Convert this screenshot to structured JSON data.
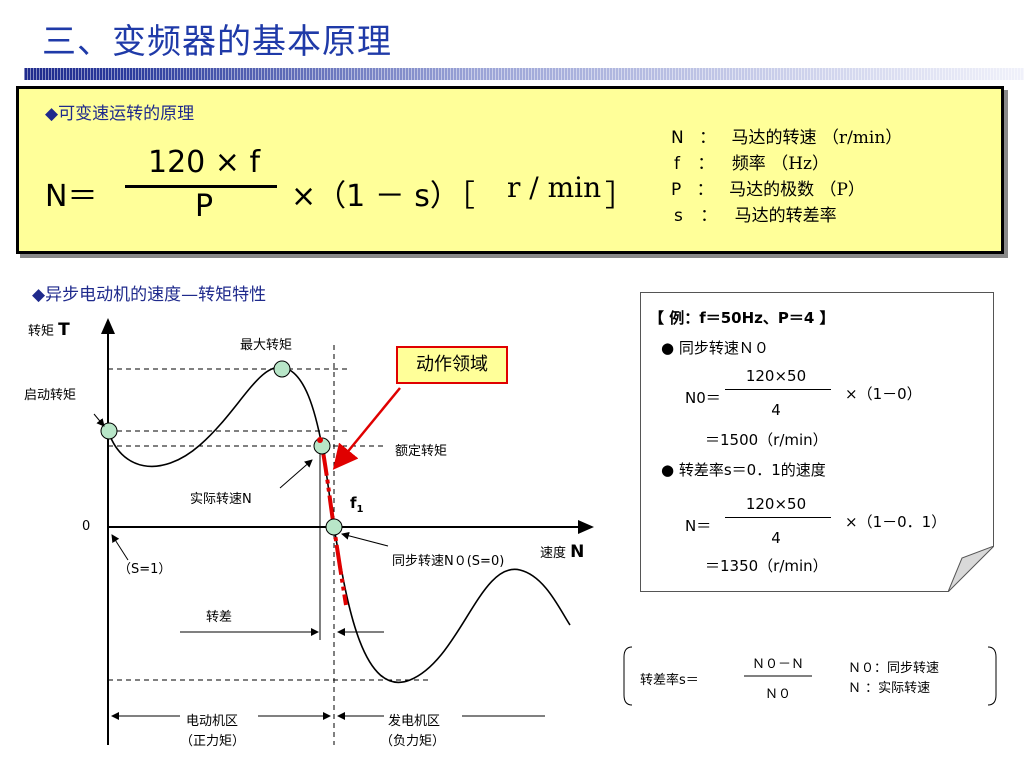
{
  "title": "三、变频器的基本原理",
  "formula_section": {
    "heading": "◆可变速运转的原理",
    "lhs": "N＝",
    "numerator": "120 × f",
    "denominator": "P",
    "rhs": "×（1 － s）［",
    "unit": "r / min",
    "close": "］",
    "legend": [
      {
        "sym": "N",
        "desc": "马达的转速",
        "unit": "（r/min）"
      },
      {
        "sym": "f",
        "desc": "频率",
        "unit": "（Hz）"
      },
      {
        "sym": "P",
        "desc": "马达的极数",
        "unit": "（P）"
      },
      {
        "sym": "s",
        "desc": "马达的转差率",
        "unit": ""
      }
    ],
    "colon": "："
  },
  "chart_section": {
    "heading": "◆异步电动机的速度—转矩特性",
    "y_axis_label": "转矩",
    "y_axis_symbol": "T",
    "x_axis_label": "速度",
    "x_axis_symbol": "N",
    "origin": "0",
    "labels": {
      "max_torque": "最大转矩",
      "start_torque": "启动转矩",
      "rated_torque": "额定转矩",
      "actual_speed": "实际转速N",
      "f1": "f",
      "f1_sub": "1",
      "sync_speed": "同步转速N０(S=0)",
      "s1": "（S=1）",
      "slip": "转差",
      "motor_zone": "电动机区",
      "motor_zone_sub": "（正力矩）",
      "gen_zone": "发电机区",
      "gen_zone_sub": "（负力矩）",
      "operating_region": "动作领域"
    },
    "colors": {
      "curve": "#000000",
      "operating": "#e00000",
      "marker": "#b8e6c8"
    }
  },
  "example": {
    "title": "【 例：f＝50Hz、P＝4 】",
    "item1": "● 同步转速Ｎ０",
    "n0_lhs": "N0＝",
    "n0_num": "120×50",
    "n0_den": "4",
    "n0_factor": "×（1－0）",
    "n0_result": "＝1500（r/min）",
    "item2": "● 转差率s＝0．1的速度",
    "n_lhs": "N＝",
    "n_num": "120×50",
    "n_den": "4",
    "n_factor": "×（1－0．1）",
    "n_result": "＝1350（r/min）"
  },
  "slip_formula": {
    "lhs": "转差率s＝",
    "num": "Ｎ０－Ｎ",
    "den": "Ｎ０",
    "def1": "Ｎ０：同步转速",
    "def2": "Ｎ ：实际转速"
  }
}
